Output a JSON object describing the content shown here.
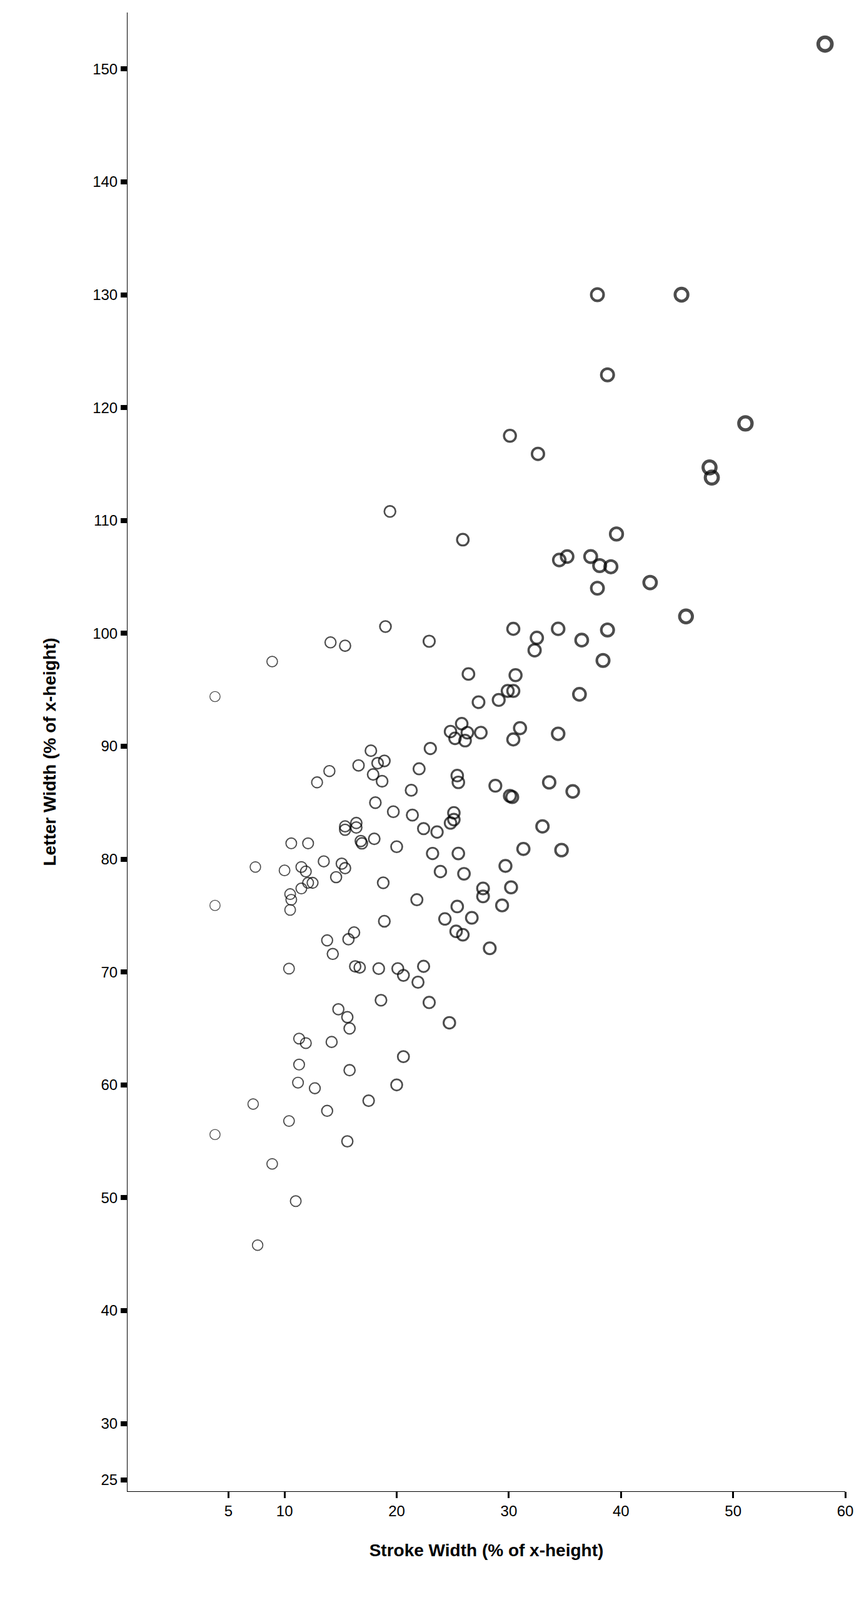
{
  "chart_data": {
    "type": "scatter",
    "x_label": "Stroke Width (% of x-height)",
    "y_label": "Letter Width (% of x-height)",
    "color": "#000000",
    "marker": "circle-open",
    "grid": false,
    "xlim": [
      -4,
      60
    ],
    "ylim": [
      24,
      155
    ],
    "xticks": [
      5,
      10,
      20,
      30,
      40,
      50,
      60
    ],
    "yticks": [
      25,
      30,
      40,
      50,
      60,
      70,
      80,
      90,
      100,
      110,
      120,
      130,
      140,
      150
    ],
    "x": [
      58.2,
      37.9,
      45.4,
      38.8,
      51.1,
      30.1,
      32.6,
      47.9,
      48.1,
      19.4,
      39.6,
      25.9,
      34.5,
      35.2,
      37.3,
      38.1,
      39.1,
      42.6,
      37.9,
      45.8,
      19.0,
      30.4,
      34.4,
      38.8,
      32.5,
      36.5,
      14.1,
      15.4,
      22.9,
      32.3,
      8.9,
      38.4,
      26.4,
      30.6,
      29.9,
      30.4,
      36.3,
      3.8,
      29.1,
      27.3,
      25.8,
      24.8,
      26.3,
      27.5,
      31.0,
      25.2,
      26.1,
      34.4,
      30.4,
      23.0,
      17.7,
      18.9,
      18.3,
      16.6,
      14.0,
      22.0,
      17.9,
      25.4,
      25.5,
      12.9,
      18.7,
      33.6,
      28.8,
      21.3,
      35.7,
      30.1,
      30.3,
      18.1,
      19.7,
      25.1,
      21.4,
      25.1,
      24.8,
      16.4,
      15.4,
      33.0,
      16.4,
      22.4,
      23.6,
      15.4,
      18.0,
      16.8,
      16.9,
      10.6,
      12.1,
      20.0,
      31.3,
      34.7,
      23.2,
      25.5,
      13.5,
      15.1,
      7.4,
      11.5,
      15.4,
      29.7,
      10.0,
      11.9,
      23.9,
      26.0,
      14.6,
      12.5,
      12.1,
      18.8,
      11.5,
      30.2,
      27.7,
      10.5,
      10.6,
      27.7,
      21.8,
      25.4,
      29.4,
      3.8,
      10.5,
      18.9,
      24.3,
      26.7,
      25.3,
      25.9,
      16.2,
      13.8,
      15.7,
      28.3,
      14.3,
      16.3,
      16.7,
      10.4,
      18.4,
      22.4,
      20.1,
      20.6,
      21.9,
      18.6,
      22.9,
      14.8,
      15.6,
      15.8,
      24.7,
      11.3,
      11.9,
      14.2,
      20.6,
      11.3,
      15.8,
      11.2,
      12.7,
      20.0,
      17.5,
      7.2,
      13.8,
      10.4,
      3.8,
      15.6,
      8.9,
      11.0,
      7.6
    ],
    "y": [
      152.2,
      130.0,
      130.0,
      122.9,
      118.6,
      117.5,
      115.9,
      114.7,
      113.8,
      110.8,
      108.8,
      108.3,
      106.5,
      106.8,
      106.8,
      106.0,
      105.9,
      104.5,
      104.0,
      101.5,
      100.6,
      100.4,
      100.4,
      100.3,
      99.6,
      99.4,
      99.2,
      98.9,
      99.3,
      98.5,
      97.5,
      97.6,
      96.4,
      96.3,
      94.9,
      94.9,
      94.6,
      94.4,
      94.1,
      93.9,
      92.0,
      91.3,
      91.2,
      91.2,
      91.6,
      90.7,
      90.5,
      91.1,
      90.6,
      89.8,
      89.6,
      88.7,
      88.5,
      88.3,
      87.8,
      88.0,
      87.5,
      87.4,
      86.8,
      86.8,
      86.9,
      86.8,
      86.5,
      86.1,
      86.0,
      85.6,
      85.5,
      85.0,
      84.2,
      84.1,
      83.9,
      83.5,
      83.2,
      83.2,
      82.9,
      82.9,
      82.8,
      82.7,
      82.4,
      82.6,
      81.8,
      81.6,
      81.4,
      81.4,
      81.4,
      81.1,
      80.9,
      80.8,
      80.5,
      80.5,
      79.8,
      79.6,
      79.3,
      79.3,
      79.2,
      79.4,
      79.0,
      78.9,
      78.9,
      78.7,
      78.4,
      77.9,
      77.9,
      77.9,
      77.4,
      77.5,
      77.4,
      76.9,
      76.4,
      76.7,
      76.4,
      75.8,
      75.9,
      75.9,
      75.5,
      74.5,
      74.7,
      74.8,
      73.6,
      73.3,
      73.5,
      72.8,
      72.9,
      72.1,
      71.6,
      70.5,
      70.4,
      70.3,
      70.3,
      70.5,
      70.3,
      69.7,
      69.1,
      67.5,
      67.3,
      66.7,
      66.0,
      65.0,
      65.5,
      64.1,
      63.7,
      63.8,
      62.5,
      61.8,
      61.3,
      60.2,
      59.7,
      60.0,
      58.6,
      58.3,
      57.7,
      56.8,
      55.6,
      55.0,
      53.0,
      49.7,
      45.8
    ]
  }
}
